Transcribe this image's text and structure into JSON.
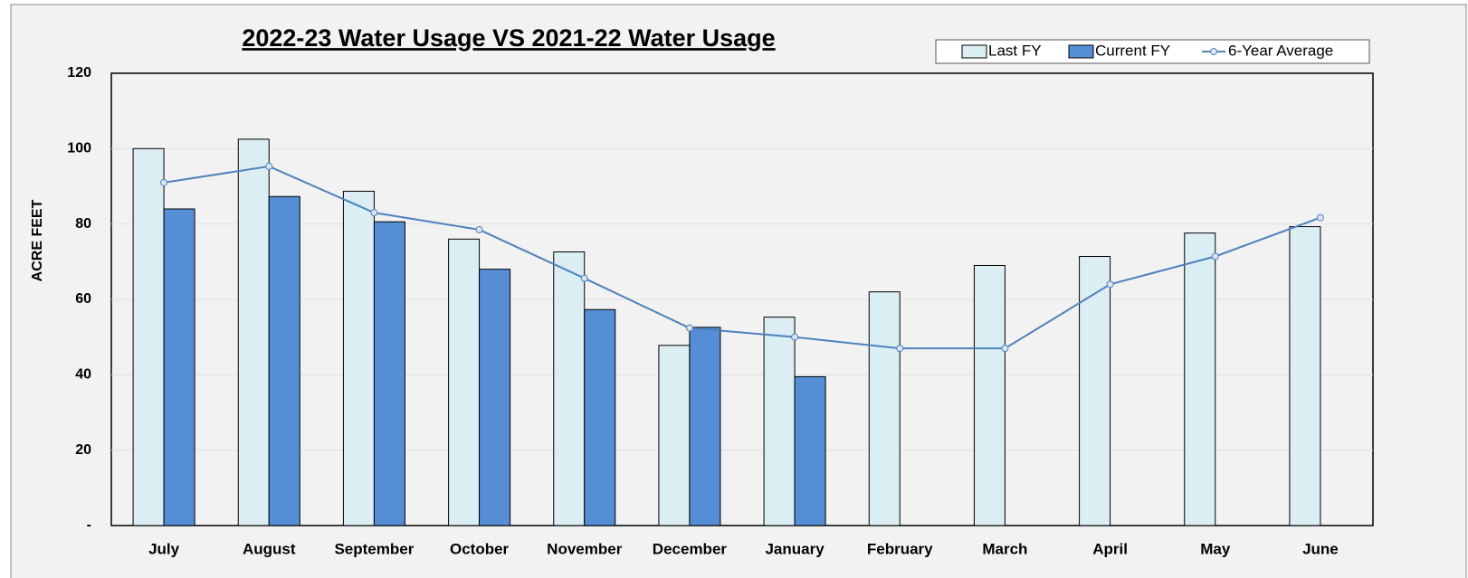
{
  "chart_data": {
    "type": "bar",
    "title": "2022-23 Water Usage VS 2021-22 Water Usage",
    "y_label": "ACRE FEET",
    "categories": [
      "July",
      "August",
      "September",
      "October",
      "November",
      "December",
      "January",
      "February",
      "March",
      "April",
      "May",
      "June"
    ],
    "series": [
      {
        "name": "Last FY",
        "type": "bar",
        "color": "#daeef3",
        "values": [
          100,
          102.5,
          88.7,
          76,
          72.6,
          47.8,
          55.3,
          62,
          69,
          71.4,
          77.6,
          79.3
        ]
      },
      {
        "name": "Current FY",
        "type": "bar",
        "color": "#558ed5",
        "values": [
          84,
          87.3,
          80.6,
          68,
          57.3,
          52.6,
          39.5,
          null,
          null,
          null,
          null,
          null
        ]
      },
      {
        "name": "6-Year Average",
        "type": "line",
        "color": "#4f81bd",
        "values": [
          91,
          95.3,
          83,
          78.5,
          65.6,
          52.4,
          50,
          47,
          47,
          64,
          71.4,
          81.7
        ]
      }
    ],
    "ylim": [
      0,
      120
    ],
    "yticks": [
      {
        "value": 0,
        "label": "-"
      },
      20,
      40,
      60,
      80,
      100,
      120
    ],
    "grid": true,
    "legend": "top-right"
  }
}
